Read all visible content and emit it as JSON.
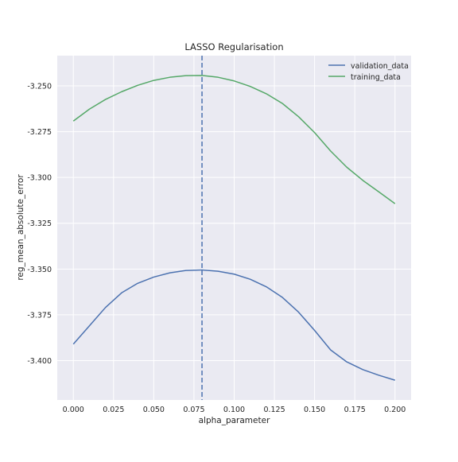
{
  "chart_data": {
    "type": "line",
    "title": "LASSO Regularisation",
    "xlabel": "alpha_parameter",
    "ylabel": "reg_mean_absolute_error",
    "xlim": [
      -0.01,
      0.21
    ],
    "ylim": [
      -3.4215,
      -3.2335
    ],
    "x": [
      0.0,
      0.01,
      0.02,
      0.03,
      0.04,
      0.05,
      0.06,
      0.07,
      0.08,
      0.09,
      0.1,
      0.11,
      0.12,
      0.13,
      0.14,
      0.15,
      0.16,
      0.17,
      0.18,
      0.19,
      0.2
    ],
    "xticks": [
      0.0,
      0.025,
      0.05,
      0.075,
      0.1,
      0.125,
      0.15,
      0.175,
      0.2
    ],
    "xtick_labels": [
      "0.000",
      "0.025",
      "0.050",
      "0.075",
      "0.100",
      "0.125",
      "0.150",
      "0.175",
      "0.200"
    ],
    "yticks": [
      -3.25,
      -3.275,
      -3.3,
      -3.325,
      -3.35,
      -3.375,
      -3.4
    ],
    "ytick_labels": [
      "-3.250",
      "-3.275",
      "-3.300",
      "-3.325",
      "-3.350",
      "-3.375",
      "-3.400"
    ],
    "series": [
      {
        "name": "validation_data",
        "color": "#4c72b0",
        "values": [
          -3.391,
          -3.381,
          -3.371,
          -3.363,
          -3.3578,
          -3.3544,
          -3.3521,
          -3.3508,
          -3.3505,
          -3.3512,
          -3.3528,
          -3.3556,
          -3.3597,
          -3.3655,
          -3.3735,
          -3.3835,
          -3.3942,
          -3.4007,
          -3.4049,
          -3.408,
          -3.4107
        ]
      },
      {
        "name": "training_data",
        "color": "#55a868",
        "values": [
          -3.2692,
          -3.2627,
          -3.2574,
          -3.2532,
          -3.2497,
          -3.247,
          -3.2453,
          -3.2444,
          -3.2443,
          -3.2453,
          -3.2473,
          -3.2503,
          -3.2543,
          -3.2596,
          -3.2668,
          -3.2755,
          -3.2856,
          -3.2944,
          -3.3016,
          -3.3079,
          -3.3143
        ]
      }
    ],
    "vline": {
      "x": 0.08,
      "color": "#4c72b0",
      "style": "dashed"
    },
    "grid": true,
    "legend_position": "top-right",
    "background": "#eaeaf2"
  }
}
